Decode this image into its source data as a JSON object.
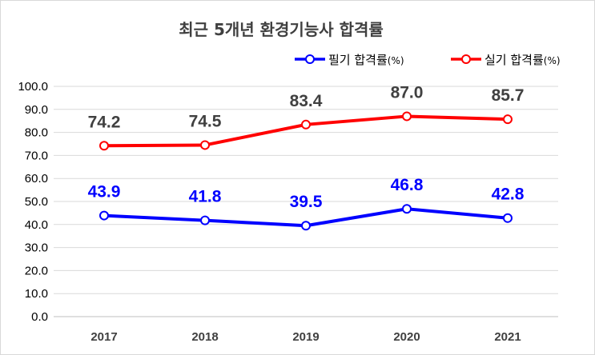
{
  "chart_data": {
    "type": "line",
    "title": "최근 5개년 환경기능사 합격률",
    "categories": [
      "2017",
      "2018",
      "2019",
      "2020",
      "2021"
    ],
    "series": [
      {
        "name": "필기 합격률",
        "unit": "(%)",
        "color": "#0000ff",
        "label_color": "#0000ff",
        "values": [
          43.9,
          41.8,
          39.5,
          46.8,
          42.8
        ]
      },
      {
        "name": "실기 합격률",
        "unit": "(%)",
        "color": "#ff0000",
        "label_color": "#404040",
        "values": [
          74.2,
          74.5,
          83.4,
          87.0,
          85.7
        ]
      }
    ],
    "ylim": [
      0,
      100
    ],
    "yticks": [
      0,
      10,
      20,
      30,
      40,
      50,
      60,
      70,
      80,
      90,
      100
    ],
    "ytick_labels": [
      "0.0",
      "10.0",
      "20.0",
      "30.0",
      "40.0",
      "50.0",
      "60.0",
      "70.0",
      "80.0",
      "90.0",
      "100.0"
    ],
    "data_labels": [
      [
        "43.9",
        "41.8",
        "39.5",
        "46.8",
        "42.8"
      ],
      [
        "74.2",
        "74.5",
        "83.4",
        "87.0",
        "85.7"
      ]
    ],
    "grid": true,
    "legend": "top-right",
    "xlabel": "",
    "ylabel": ""
  }
}
